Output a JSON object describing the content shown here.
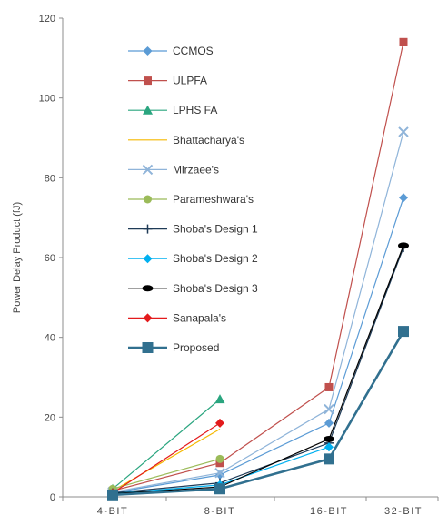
{
  "chart_data": {
    "type": "line",
    "title": "",
    "xlabel": "",
    "ylabel": "Power Delay Product (fJ)",
    "ylim": [
      0,
      120
    ],
    "yticks": [
      0,
      20,
      40,
      60,
      80,
      100,
      120
    ],
    "categories": [
      "4-BIT",
      "8-BIT",
      "16-BIT",
      "32-BIT"
    ],
    "grid": false,
    "legend": "top-left",
    "series": [
      {
        "name": "CCMOS",
        "color": "#5b9bd5",
        "marker": "diamond",
        "values": [
          1.0,
          5.5,
          18.5,
          75
        ]
      },
      {
        "name": "ULPFA",
        "color": "#c0504d",
        "marker": "square",
        "values": [
          1.5,
          8.5,
          27.5,
          114
        ]
      },
      {
        "name": "LPHS FA",
        "color": "#2aa57f",
        "marker": "triangle",
        "values": [
          2.0,
          24.5,
          null,
          null
        ]
      },
      {
        "name": "Bhattacharya's",
        "color": "#f5b800",
        "marker": "none",
        "values": [
          1.5,
          17.0,
          null,
          null
        ]
      },
      {
        "name": "Mirzaee's",
        "color": "#8fb4d9",
        "marker": "x",
        "values": [
          1.2,
          6.0,
          22.0,
          91.5
        ]
      },
      {
        "name": "Parameshwara's",
        "color": "#9bbb59",
        "marker": "circle",
        "values": [
          2.0,
          9.5,
          null,
          null
        ]
      },
      {
        "name": "Shoba's Design 1",
        "color": "#1f3b57",
        "marker": "plus",
        "values": [
          1.0,
          3.5,
          13.5,
          62.5
        ]
      },
      {
        "name": "Shoba's Design 2",
        "color": "#00b0f0",
        "marker": "diamond",
        "values": [
          0.8,
          3.0,
          12.5,
          null
        ]
      },
      {
        "name": "Shoba's Design 3",
        "color": "#000000",
        "marker": "ellipse",
        "values": [
          0.8,
          2.5,
          14.5,
          63
        ]
      },
      {
        "name": "Sanapala's",
        "color": "#e31a1c",
        "marker": "diamond",
        "values": [
          1.0,
          18.5,
          null,
          null
        ]
      },
      {
        "name": "Proposed",
        "color": "#31708f",
        "marker": "square-big",
        "values": [
          0.5,
          2.0,
          9.5,
          41.5
        ]
      }
    ]
  }
}
